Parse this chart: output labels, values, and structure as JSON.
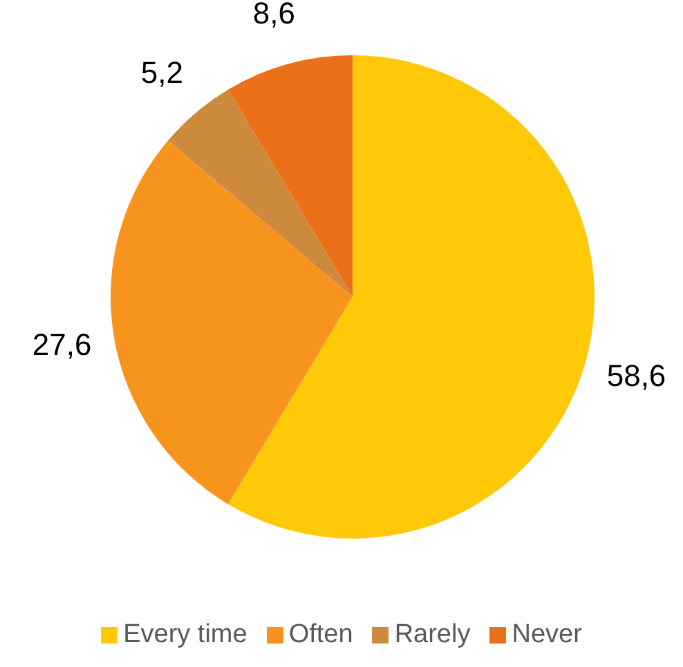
{
  "chart_data": {
    "type": "pie",
    "categories": [
      "Every time",
      "Often",
      "Rarely",
      "Never"
    ],
    "values": [
      58.6,
      27.6,
      5.2,
      8.6
    ],
    "colors": [
      "#ffc90a",
      "#f7941e",
      "#cd8a3c",
      "#eb7019"
    ],
    "value_labels": [
      "58,6",
      "27,6",
      "5,2",
      "8,6"
    ],
    "legend": "bottom"
  }
}
